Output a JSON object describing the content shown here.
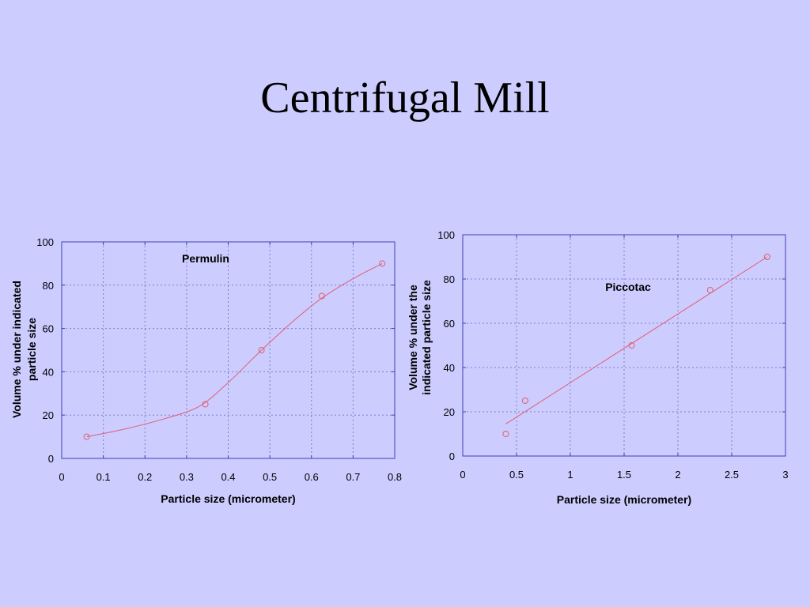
{
  "slide": {
    "title": "Centrifugal Mill"
  },
  "chart_data": [
    {
      "type": "scatter",
      "fit": "smooth",
      "annotation": "Permulin",
      "xlabel": "Particle size (micrometer)",
      "ylabel_lines": [
        "Volume % under indicated",
        "particle size"
      ],
      "xlim": [
        0,
        0.8
      ],
      "ylim": [
        0,
        100
      ],
      "xticks": [
        "0",
        "0.1",
        "0.2",
        "0.3",
        "0.4",
        "0.5",
        "0.6",
        "0.7",
        "0.8"
      ],
      "yticks": [
        "0",
        "20",
        "40",
        "60",
        "80",
        "100"
      ],
      "grid": true,
      "points": [
        {
          "x": 0.06,
          "y": 10
        },
        {
          "x": 0.345,
          "y": 25
        },
        {
          "x": 0.48,
          "y": 50
        },
        {
          "x": 0.625,
          "y": 75
        },
        {
          "x": 0.77,
          "y": 90
        }
      ],
      "curve": [
        {
          "x": 0.06,
          "y": 10
        },
        {
          "x": 0.15,
          "y": 13.5
        },
        {
          "x": 0.25,
          "y": 18.5
        },
        {
          "x": 0.33,
          "y": 24
        },
        {
          "x": 0.4,
          "y": 35
        },
        {
          "x": 0.48,
          "y": 50
        },
        {
          "x": 0.56,
          "y": 64
        },
        {
          "x": 0.625,
          "y": 74
        },
        {
          "x": 0.7,
          "y": 83
        },
        {
          "x": 0.77,
          "y": 90
        }
      ]
    },
    {
      "type": "scatter",
      "fit": "linear",
      "annotation": "Piccotac",
      "xlabel": "Particle size (micrometer)",
      "ylabel_lines": [
        "Volume % under the",
        "indicated particle size"
      ],
      "xlim": [
        0,
        3
      ],
      "ylim": [
        0,
        100
      ],
      "xticks": [
        "0",
        "0.5",
        "1",
        "1.5",
        "2",
        "2.5",
        "3"
      ],
      "yticks": [
        "0",
        "20",
        "40",
        "60",
        "80",
        "100"
      ],
      "grid": true,
      "points": [
        {
          "x": 0.4,
          "y": 10
        },
        {
          "x": 0.58,
          "y": 25
        },
        {
          "x": 1.57,
          "y": 50
        },
        {
          "x": 2.3,
          "y": 75
        },
        {
          "x": 2.83,
          "y": 90
        }
      ],
      "curve": [
        {
          "x": 0.4,
          "y": 14.5
        },
        {
          "x": 2.83,
          "y": 90
        }
      ]
    }
  ]
}
